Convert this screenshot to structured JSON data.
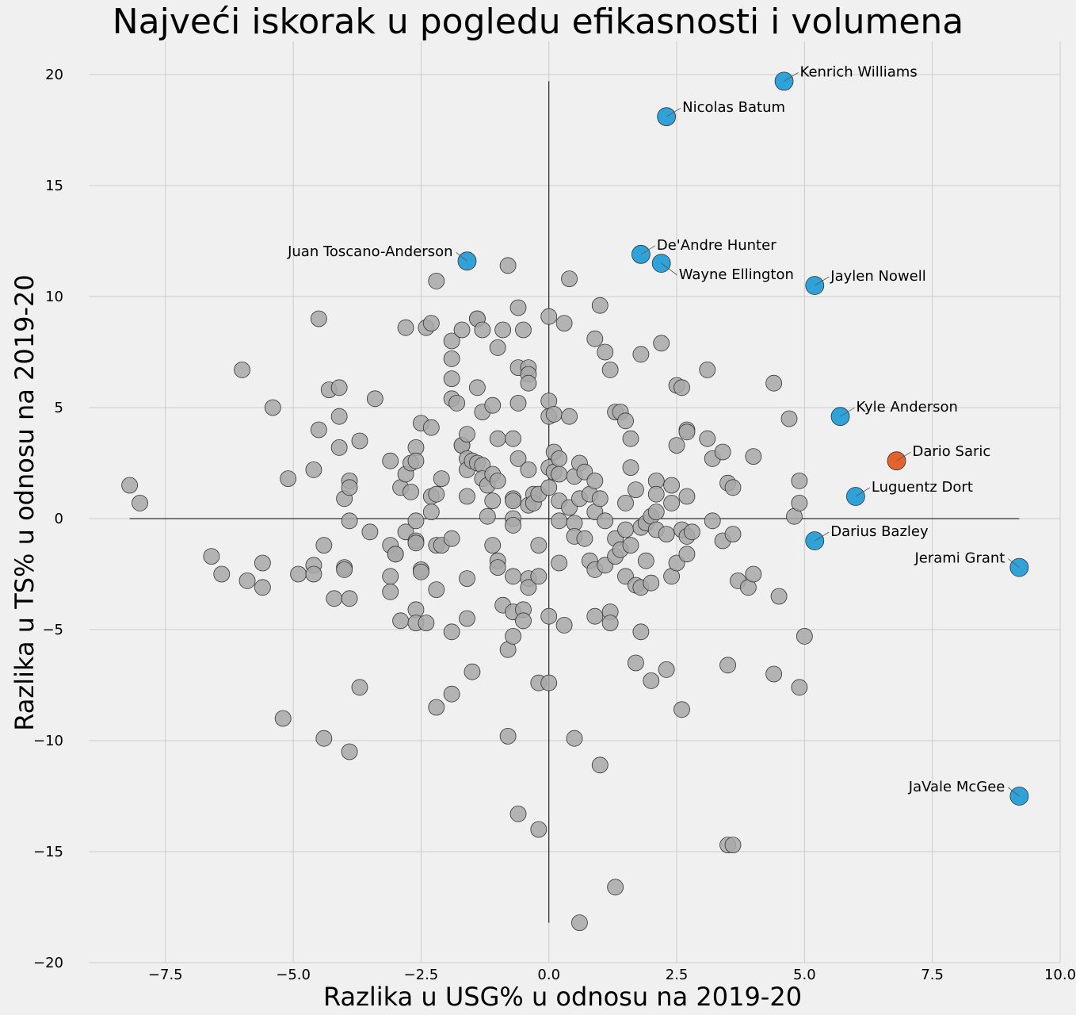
{
  "chart_data": {
    "type": "scatter",
    "title": "Najveći iskorak u pogledu efikasnosti i volumena",
    "xlabel": "Razlika u USG% u odnosu na 2019-20",
    "ylabel": "Razlika u TS% u odnosu na 2019-20",
    "xlim": [
      -9.0,
      10.0
    ],
    "ylim": [
      -20,
      21.5
    ],
    "xticks": [
      -7.5,
      -5.0,
      -2.5,
      0.0,
      2.5,
      5.0,
      7.5,
      10.0
    ],
    "xtick_labels": [
      "−7.5",
      "−5.0",
      "−2.5",
      "0.0",
      "2.5",
      "5.0",
      "7.5",
      "10.0"
    ],
    "yticks": [
      -20,
      -15,
      -10,
      -5,
      0,
      5,
      10,
      15,
      20
    ],
    "ytick_labels": [
      "−20",
      "−15",
      "−10",
      "−5",
      "0",
      "5",
      "10",
      "15",
      "20"
    ],
    "grid": true,
    "colors": {
      "background": "#f0f0f0",
      "other": "#a8a8a8",
      "highlight": "#30a2da",
      "special": "#e5632a"
    },
    "reference_lines": {
      "horizontal": {
        "y": 0,
        "x_from": -8.2,
        "x_to": 9.2
      },
      "vertical": {
        "x": 0,
        "y_from": -18.2,
        "y_to": 19.7
      }
    },
    "highlighted": [
      {
        "name": "Kenrich Williams",
        "x": 4.6,
        "y": 19.7,
        "label_side": "right",
        "color": "#30a2da"
      },
      {
        "name": "Nicolas Batum",
        "x": 2.3,
        "y": 18.1,
        "label_side": "right",
        "color": "#30a2da"
      },
      {
        "name": "Juan Toscano-Anderson",
        "x": -1.6,
        "y": 11.6,
        "label_side": "left",
        "color": "#30a2da"
      },
      {
        "name": "De'Andre Hunter",
        "x": 1.8,
        "y": 11.9,
        "label_side": "right",
        "color": "#30a2da"
      },
      {
        "name": "Wayne Ellington",
        "x": 2.2,
        "y": 11.5,
        "label_side": "below-right",
        "color": "#30a2da"
      },
      {
        "name": "Jaylen Nowell",
        "x": 5.2,
        "y": 10.5,
        "label_side": "right",
        "color": "#30a2da"
      },
      {
        "name": "Kyle Anderson",
        "x": 5.7,
        "y": 4.6,
        "label_side": "right",
        "color": "#30a2da"
      },
      {
        "name": "Dario Saric",
        "x": 6.8,
        "y": 2.6,
        "label_side": "right",
        "color": "#e5632a"
      },
      {
        "name": "Luguentz Dort",
        "x": 6.0,
        "y": 1.0,
        "label_side": "right",
        "color": "#30a2da"
      },
      {
        "name": "Darius Bazley",
        "x": 5.2,
        "y": -1.0,
        "label_side": "right",
        "color": "#30a2da"
      },
      {
        "name": "Jerami Grant",
        "x": 9.2,
        "y": -2.2,
        "label_side": "left",
        "color": "#30a2da"
      },
      {
        "name": "JaVale McGee",
        "x": 9.2,
        "y": -12.5,
        "label_side": "left",
        "color": "#30a2da"
      }
    ],
    "points": [
      [
        -8.2,
        1.5
      ],
      [
        -8.0,
        0.7
      ],
      [
        -6.6,
        -1.7
      ],
      [
        -6.4,
        -2.5
      ],
      [
        -6.0,
        6.7
      ],
      [
        -5.9,
        -2.8
      ],
      [
        -5.6,
        -2.0
      ],
      [
        -5.6,
        -3.1
      ],
      [
        -5.4,
        5.0
      ],
      [
        -5.2,
        -9.0
      ],
      [
        -5.1,
        1.8
      ],
      [
        -4.9,
        -2.5
      ],
      [
        -4.6,
        2.2
      ],
      [
        -4.6,
        -2.1
      ],
      [
        -4.6,
        -2.5
      ],
      [
        -4.5,
        9.0
      ],
      [
        -4.5,
        4.0
      ],
      [
        -4.4,
        -1.2
      ],
      [
        -4.4,
        -9.9
      ],
      [
        -4.3,
        5.8
      ],
      [
        -4.2,
        -3.6
      ],
      [
        -4.1,
        5.9
      ],
      [
        -4.1,
        4.6
      ],
      [
        -4.1,
        3.2
      ],
      [
        -4.0,
        0.9
      ],
      [
        -4.0,
        -2.2
      ],
      [
        -4.0,
        -2.3
      ],
      [
        -3.9,
        1.7
      ],
      [
        -3.9,
        1.4
      ],
      [
        -3.9,
        -0.1
      ],
      [
        -3.9,
        -3.6
      ],
      [
        -3.9,
        -10.5
      ],
      [
        -3.7,
        3.5
      ],
      [
        -3.7,
        -7.6
      ],
      [
        -3.5,
        -0.6
      ],
      [
        -3.4,
        5.4
      ],
      [
        -3.1,
        2.6
      ],
      [
        -3.1,
        -1.2
      ],
      [
        -3.1,
        -2.6
      ],
      [
        -3.1,
        -3.3
      ],
      [
        -3.0,
        -1.6
      ],
      [
        -3.0,
        -1.6
      ],
      [
        -2.9,
        1.4
      ],
      [
        -2.9,
        -4.6
      ],
      [
        -2.8,
        8.6
      ],
      [
        -2.8,
        2.0
      ],
      [
        -2.8,
        -0.6
      ],
      [
        -2.7,
        2.5
      ],
      [
        -2.7,
        1.2
      ],
      [
        -2.6,
        3.2
      ],
      [
        -2.6,
        2.6
      ],
      [
        -2.6,
        -0.1
      ],
      [
        -2.6,
        -1.0
      ],
      [
        -2.6,
        -1.1
      ],
      [
        -2.6,
        -4.1
      ],
      [
        -2.6,
        -4.7
      ],
      [
        -2.5,
        4.3
      ],
      [
        -2.5,
        -2.3
      ],
      [
        -2.5,
        -2.4
      ],
      [
        -2.4,
        8.6
      ],
      [
        -2.4,
        -4.7
      ],
      [
        -2.3,
        8.8
      ],
      [
        -2.3,
        4.1
      ],
      [
        -2.3,
        1.0
      ],
      [
        -2.3,
        0.3
      ],
      [
        -2.2,
        10.7
      ],
      [
        -2.2,
        1.1
      ],
      [
        -2.2,
        -1.2
      ],
      [
        -2.2,
        -3.2
      ],
      [
        -2.2,
        -8.5
      ],
      [
        -2.1,
        1.8
      ],
      [
        -2.1,
        -1.2
      ],
      [
        -1.9,
        8.0
      ],
      [
        -1.9,
        7.2
      ],
      [
        -1.9,
        6.3
      ],
      [
        -1.9,
        5.4
      ],
      [
        -1.9,
        -0.9
      ],
      [
        -1.9,
        -5.1
      ],
      [
        -1.9,
        -7.9
      ],
      [
        -1.8,
        5.2
      ],
      [
        -1.7,
        8.5
      ],
      [
        -1.7,
        3.3
      ],
      [
        -1.7,
        3.3
      ],
      [
        -1.6,
        3.8
      ],
      [
        -1.6,
        2.7
      ],
      [
        -1.6,
        2.2
      ],
      [
        -1.6,
        1.0
      ],
      [
        -1.6,
        -2.7
      ],
      [
        -1.6,
        -4.5
      ],
      [
        -1.5,
        2.6
      ],
      [
        -1.5,
        -6.9
      ],
      [
        -1.4,
        9.0
      ],
      [
        -1.4,
        9.0
      ],
      [
        -1.4,
        5.9
      ],
      [
        -1.4,
        2.5
      ],
      [
        -1.3,
        8.5
      ],
      [
        -1.3,
        4.8
      ],
      [
        -1.3,
        2.4
      ],
      [
        -1.3,
        1.8
      ],
      [
        -1.2,
        1.5
      ],
      [
        -1.2,
        0.1
      ],
      [
        -1.1,
        5.1
      ],
      [
        -1.1,
        2.0
      ],
      [
        -1.1,
        0.8
      ],
      [
        -1.1,
        -1.2
      ],
      [
        -1.0,
        7.7
      ],
      [
        -1.0,
        3.6
      ],
      [
        -1.0,
        1.7
      ],
      [
        -1.0,
        -1.9
      ],
      [
        -1.0,
        -2.2
      ],
      [
        -0.9,
        8.5
      ],
      [
        -0.9,
        -3.9
      ],
      [
        -0.8,
        11.4
      ],
      [
        -0.8,
        -5.9
      ],
      [
        -0.8,
        -9.8
      ],
      [
        -0.7,
        3.6
      ],
      [
        -0.7,
        0.9
      ],
      [
        -0.7,
        0.8
      ],
      [
        -0.7,
        0.0
      ],
      [
        -0.7,
        -0.3
      ],
      [
        -0.7,
        -2.6
      ],
      [
        -0.7,
        -4.2
      ],
      [
        -0.7,
        -5.3
      ],
      [
        -0.6,
        9.5
      ],
      [
        -0.6,
        6.8
      ],
      [
        -0.6,
        5.2
      ],
      [
        -0.6,
        2.7
      ],
      [
        -0.6,
        -13.3
      ],
      [
        -0.5,
        8.5
      ],
      [
        -0.5,
        -4.1
      ],
      [
        -0.5,
        -4.6
      ],
      [
        -0.4,
        6.8
      ],
      [
        -0.4,
        6.5
      ],
      [
        -0.4,
        6.1
      ],
      [
        -0.4,
        2.2
      ],
      [
        -0.4,
        0.6
      ],
      [
        -0.4,
        -2.7
      ],
      [
        -0.4,
        -3.1
      ],
      [
        -0.3,
        1.1
      ],
      [
        -0.3,
        0.7
      ],
      [
        -0.2,
        1.1
      ],
      [
        -0.2,
        -1.2
      ],
      [
        -0.2,
        -2.6
      ],
      [
        -0.2,
        -7.4
      ],
      [
        -0.2,
        -14.0
      ],
      [
        0.0,
        9.1
      ],
      [
        0.0,
        5.3
      ],
      [
        0.0,
        4.6
      ],
      [
        0.0,
        2.3
      ],
      [
        0.0,
        1.4
      ],
      [
        0.0,
        -4.4
      ],
      [
        0.0,
        -7.4
      ],
      [
        0.1,
        4.7
      ],
      [
        0.1,
        3.0
      ],
      [
        0.1,
        2.1
      ],
      [
        0.2,
        2.7
      ],
      [
        0.2,
        2.0
      ],
      [
        0.2,
        0.8
      ],
      [
        0.2,
        -0.1
      ],
      [
        0.2,
        -2.0
      ],
      [
        0.3,
        8.8
      ],
      [
        0.3,
        -4.8
      ],
      [
        0.4,
        10.8
      ],
      [
        0.4,
        4.6
      ],
      [
        0.4,
        0.5
      ],
      [
        0.5,
        1.9
      ],
      [
        0.5,
        -0.2
      ],
      [
        0.5,
        -0.8
      ],
      [
        0.5,
        -9.9
      ],
      [
        0.6,
        2.5
      ],
      [
        0.6,
        0.9
      ],
      [
        0.6,
        -18.2
      ],
      [
        0.7,
        2.1
      ],
      [
        0.7,
        -0.9
      ],
      [
        0.8,
        1.1
      ],
      [
        0.8,
        -1.9
      ],
      [
        0.9,
        8.1
      ],
      [
        0.9,
        1.7
      ],
      [
        0.9,
        0.3
      ],
      [
        0.9,
        -2.3
      ],
      [
        0.9,
        -4.4
      ],
      [
        1.0,
        9.6
      ],
      [
        1.0,
        0.9
      ],
      [
        1.0,
        -11.1
      ],
      [
        1.1,
        7.5
      ],
      [
        1.1,
        -0.1
      ],
      [
        1.1,
        -2.1
      ],
      [
        1.2,
        6.7
      ],
      [
        1.2,
        -4.2
      ],
      [
        1.2,
        -4.7
      ],
      [
        1.3,
        4.8
      ],
      [
        1.3,
        -0.9
      ],
      [
        1.3,
        -1.7
      ],
      [
        1.3,
        -16.6
      ],
      [
        1.4,
        4.8
      ],
      [
        1.4,
        -1.4
      ],
      [
        1.5,
        4.4
      ],
      [
        1.5,
        0.7
      ],
      [
        1.5,
        -0.5
      ],
      [
        1.5,
        -2.6
      ],
      [
        1.6,
        3.6
      ],
      [
        1.6,
        2.3
      ],
      [
        1.6,
        -1.2
      ],
      [
        1.7,
        1.3
      ],
      [
        1.7,
        -3.0
      ],
      [
        1.7,
        -6.5
      ],
      [
        1.8,
        7.4
      ],
      [
        1.8,
        -0.4
      ],
      [
        1.8,
        -3.1
      ],
      [
        1.8,
        -5.1
      ],
      [
        1.9,
        -0.2
      ],
      [
        1.9,
        -1.9
      ],
      [
        2.0,
        0.1
      ],
      [
        2.0,
        -2.9
      ],
      [
        2.0,
        -7.3
      ],
      [
        2.1,
        1.7
      ],
      [
        2.1,
        1.1
      ],
      [
        2.1,
        0.3
      ],
      [
        2.1,
        -0.5
      ],
      [
        2.2,
        7.9
      ],
      [
        2.3,
        -0.7
      ],
      [
        2.3,
        -6.8
      ],
      [
        2.4,
        1.5
      ],
      [
        2.4,
        0.7
      ],
      [
        2.4,
        -2.6
      ],
      [
        2.5,
        6.0
      ],
      [
        2.5,
        3.3
      ],
      [
        2.5,
        -2.0
      ],
      [
        2.6,
        5.9
      ],
      [
        2.6,
        -0.5
      ],
      [
        2.6,
        -8.6
      ],
      [
        2.7,
        4.0
      ],
      [
        2.7,
        3.9
      ],
      [
        2.7,
        1.0
      ],
      [
        2.7,
        -0.8
      ],
      [
        2.7,
        -1.6
      ],
      [
        2.8,
        -0.6
      ],
      [
        3.1,
        6.7
      ],
      [
        3.1,
        3.6
      ],
      [
        3.2,
        2.7
      ],
      [
        3.2,
        -0.1
      ],
      [
        3.4,
        3.0
      ],
      [
        3.4,
        -1.0
      ],
      [
        3.5,
        1.6
      ],
      [
        3.5,
        -6.6
      ],
      [
        3.5,
        -14.7
      ],
      [
        3.6,
        1.4
      ],
      [
        3.6,
        -0.7
      ],
      [
        3.6,
        -14.7
      ],
      [
        3.7,
        -2.8
      ],
      [
        3.9,
        -3.1
      ],
      [
        4.0,
        2.8
      ],
      [
        4.0,
        -2.5
      ],
      [
        4.4,
        6.1
      ],
      [
        4.4,
        -7.0
      ],
      [
        4.5,
        -3.5
      ],
      [
        4.7,
        4.5
      ],
      [
        4.8,
        0.1
      ],
      [
        4.9,
        1.7
      ],
      [
        4.9,
        0.7
      ],
      [
        4.9,
        -7.6
      ],
      [
        5.0,
        -5.3
      ]
    ]
  }
}
